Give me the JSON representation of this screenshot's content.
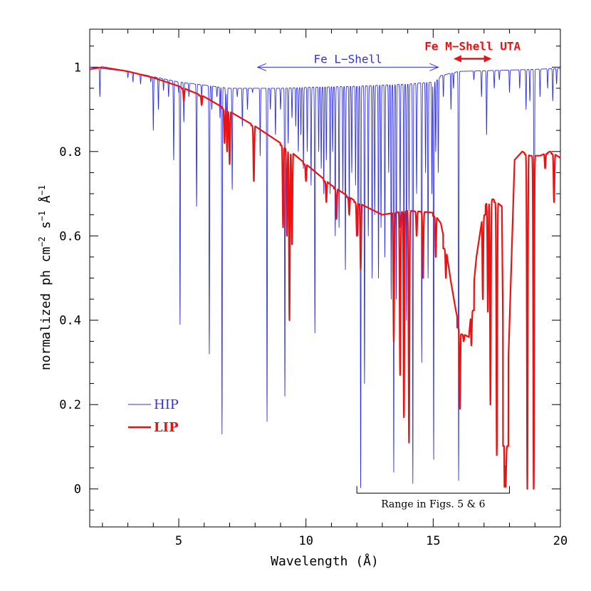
{
  "chart_data": {
    "type": "line",
    "xlabel": "Wavelength (Å)",
    "ylabel_parts": [
      "normalized ph cm",
      "−2",
      " s",
      "−1",
      " Å",
      "−1"
    ],
    "xlim": [
      1.5,
      20
    ],
    "ylim": [
      -0.09,
      1.09
    ],
    "xticks": [
      5,
      10,
      15,
      20
    ],
    "yticks": [
      0,
      0.2,
      0.4,
      0.6,
      0.8,
      1
    ],
    "ytick_labels": [
      "0",
      "0.2",
      "0.4",
      "0.6",
      "0.8",
      "1"
    ],
    "grid": false,
    "legend_position": "lower-left",
    "series": [
      {
        "name": "HIP",
        "color": "#3030e0",
        "continuum": [
          [
            1.5,
            1.0
          ],
          [
            3,
            0.99
          ],
          [
            5,
            0.965
          ],
          [
            7,
            0.95
          ],
          [
            9,
            0.95
          ],
          [
            10,
            0.952
          ],
          [
            12,
            0.955
          ],
          [
            14,
            0.96
          ],
          [
            15,
            0.965
          ],
          [
            15.3,
            0.98
          ],
          [
            16,
            0.99
          ],
          [
            18,
            0.993
          ],
          [
            20,
            0.997
          ]
        ],
        "absorption_lines": [
          [
            1.9,
            0.93
          ],
          [
            3.0,
            0.975
          ],
          [
            3.2,
            0.965
          ],
          [
            3.5,
            0.96
          ],
          [
            3.9,
            0.965
          ],
          [
            4.0,
            0.85
          ],
          [
            4.2,
            0.9
          ],
          [
            4.4,
            0.945
          ],
          [
            4.6,
            0.93
          ],
          [
            4.8,
            0.78
          ],
          [
            5.0,
            0.94
          ],
          [
            5.05,
            0.39
          ],
          [
            5.2,
            0.87
          ],
          [
            5.4,
            0.93
          ],
          [
            5.7,
            0.67
          ],
          [
            5.9,
            0.93
          ],
          [
            6.2,
            0.32
          ],
          [
            6.3,
            0.9
          ],
          [
            6.5,
            0.93
          ],
          [
            6.62,
            0.88
          ],
          [
            6.7,
            0.13
          ],
          [
            6.85,
            0.86
          ],
          [
            6.9,
            0.82
          ],
          [
            7.1,
            0.71
          ],
          [
            7.3,
            0.93
          ],
          [
            7.5,
            0.86
          ],
          [
            7.7,
            0.9
          ],
          [
            7.9,
            0.94
          ],
          [
            8.2,
            0.79
          ],
          [
            8.47,
            0.16
          ],
          [
            8.6,
            0.9
          ],
          [
            8.8,
            0.84
          ],
          [
            9.0,
            0.9
          ],
          [
            9.17,
            0.22
          ],
          [
            9.3,
            0.82
          ],
          [
            9.45,
            0.88
          ],
          [
            9.6,
            0.86
          ],
          [
            9.7,
            0.8
          ],
          [
            9.8,
            0.84
          ],
          [
            9.9,
            0.76
          ],
          [
            10.05,
            0.8
          ],
          [
            10.2,
            0.72
          ],
          [
            10.35,
            0.37
          ],
          [
            10.5,
            0.8
          ],
          [
            10.6,
            0.76
          ],
          [
            10.7,
            0.7
          ],
          [
            10.8,
            0.78
          ],
          [
            10.95,
            0.7
          ],
          [
            11.05,
            0.8
          ],
          [
            11.15,
            0.6
          ],
          [
            11.3,
            0.62
          ],
          [
            11.45,
            0.7
          ],
          [
            11.55,
            0.52
          ],
          [
            11.7,
            0.66
          ],
          [
            11.8,
            0.75
          ],
          [
            11.95,
            0.72
          ],
          [
            12.05,
            0.6
          ],
          [
            12.15,
            0.003
          ],
          [
            12.3,
            0.25
          ],
          [
            12.45,
            0.6
          ],
          [
            12.6,
            0.5
          ],
          [
            12.7,
            0.65
          ],
          [
            12.85,
            0.5
          ],
          [
            12.95,
            0.62
          ],
          [
            13.1,
            0.55
          ],
          [
            13.25,
            0.75
          ],
          [
            13.35,
            0.45
          ],
          [
            13.45,
            0.04
          ],
          [
            13.55,
            0.45
          ],
          [
            13.7,
            0.62
          ],
          [
            13.85,
            0.52
          ],
          [
            13.95,
            0.4
          ],
          [
            14.05,
            0.66
          ],
          [
            14.2,
            0.013
          ],
          [
            14.35,
            0.7
          ],
          [
            14.55,
            0.3
          ],
          [
            14.7,
            0.75
          ],
          [
            14.8,
            0.5
          ],
          [
            14.95,
            0.7
          ],
          [
            15.02,
            0.07
          ],
          [
            15.1,
            0.8
          ],
          [
            15.2,
            0.75
          ],
          [
            15.4,
            0.93
          ],
          [
            15.7,
            0.9
          ],
          [
            15.8,
            0.95
          ],
          [
            16.0,
            0.02
          ],
          [
            16.6,
            0.97
          ],
          [
            16.9,
            0.93
          ],
          [
            17.1,
            0.84
          ],
          [
            17.4,
            0.95
          ],
          [
            17.6,
            0.97
          ],
          [
            18.0,
            0.94
          ],
          [
            18.4,
            0.95
          ],
          [
            18.65,
            0.9
          ],
          [
            18.8,
            0.92
          ],
          [
            18.97,
            0.005
          ],
          [
            19.2,
            0.93
          ],
          [
            19.5,
            0.95
          ],
          [
            19.7,
            0.92
          ],
          [
            19.85,
            0.96
          ]
        ]
      },
      {
        "name": "LIP",
        "color": "#ee1111",
        "continuum": [
          [
            1.5,
            0.995
          ],
          [
            2,
            1.0
          ],
          [
            3,
            0.99
          ],
          [
            4,
            0.975
          ],
          [
            5,
            0.955
          ],
          [
            6,
            0.93
          ],
          [
            7,
            0.895
          ],
          [
            8,
            0.86
          ],
          [
            9,
            0.82
          ],
          [
            10,
            0.77
          ],
          [
            11,
            0.72
          ],
          [
            12,
            0.68
          ],
          [
            13,
            0.65
          ],
          [
            14,
            0.66
          ],
          [
            15,
            0.655
          ],
          [
            15.3,
            0.63
          ],
          [
            15.5,
            0.57
          ],
          [
            15.7,
            0.49
          ],
          [
            15.9,
            0.42
          ],
          [
            16.1,
            0.37
          ],
          [
            16.4,
            0.36
          ],
          [
            16.7,
            0.55
          ],
          [
            17.0,
            0.67
          ],
          [
            17.3,
            0.69
          ],
          [
            17.7,
            0.67
          ],
          [
            17.8,
            0.005
          ],
          [
            18.2,
            0.78
          ],
          [
            18.5,
            0.8
          ],
          [
            18.8,
            0.79
          ],
          [
            19.2,
            0.79
          ],
          [
            19.6,
            0.8
          ],
          [
            20,
            0.785
          ]
        ],
        "absorption_lines": [
          [
            5.2,
            0.92
          ],
          [
            5.9,
            0.91
          ],
          [
            6.8,
            0.82
          ],
          [
            6.9,
            0.8
          ],
          [
            7.0,
            0.77
          ],
          [
            7.95,
            0.73
          ],
          [
            9.1,
            0.62
          ],
          [
            9.25,
            0.6
          ],
          [
            9.35,
            0.4
          ],
          [
            9.45,
            0.58
          ],
          [
            10.0,
            0.73
          ],
          [
            10.8,
            0.68
          ],
          [
            11.2,
            0.64
          ],
          [
            11.7,
            0.65
          ],
          [
            12.0,
            0.6
          ],
          [
            12.15,
            0.52
          ],
          [
            13.45,
            0.35
          ],
          [
            13.7,
            0.27
          ],
          [
            13.85,
            0.17
          ],
          [
            14.05,
            0.11
          ],
          [
            14.35,
            0.6
          ],
          [
            14.6,
            0.5
          ],
          [
            15.1,
            0.55
          ],
          [
            15.5,
            0.5
          ],
          [
            16.05,
            0.19
          ],
          [
            16.2,
            0.35
          ],
          [
            16.5,
            0.34
          ],
          [
            16.95,
            0.45
          ],
          [
            17.15,
            0.42
          ],
          [
            17.25,
            0.2
          ],
          [
            17.5,
            0.08
          ],
          [
            17.85,
            0.005
          ],
          [
            18.7,
            0.0
          ],
          [
            18.95,
            0.0
          ],
          [
            19.4,
            0.76
          ],
          [
            19.75,
            0.68
          ]
        ]
      }
    ],
    "annotations": {
      "fe_l_shell": {
        "text": "Fe L−Shell",
        "x_range": [
          8.1,
          15.2
        ],
        "y": 1.0
      },
      "fe_m_shell": {
        "text": "Fe M−Shell UTA",
        "x_range": [
          15.8,
          17.3
        ],
        "y": 1.02
      },
      "range_figs": {
        "text": "Range in Figs. 5 & 6",
        "x_range": [
          12.0,
          18.0
        ],
        "y": -0.01
      }
    }
  },
  "colors": {
    "hip": "#3030e0",
    "lip": "#ee1111",
    "axis": "#000000"
  }
}
